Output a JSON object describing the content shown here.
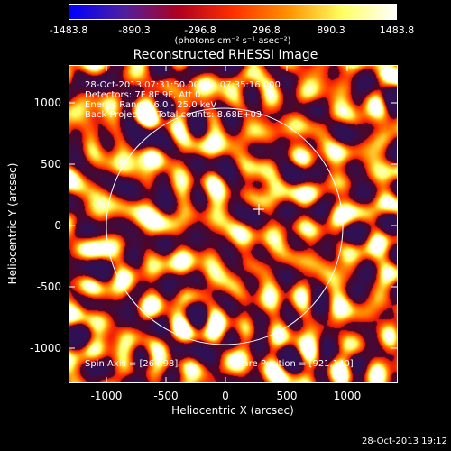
{
  "colorbar": {
    "ticks": [
      "-1483.8",
      "-890.3",
      "-296.8",
      "296.8",
      "890.3",
      "1483.8"
    ],
    "unit": "(photons cm⁻² s⁻¹ asec⁻²)"
  },
  "title": "Reconstructed RHESSI Image",
  "info": {
    "line1": "28-Oct-2013 07:31:50.000 to 07:35:16.000",
    "line2": "Detectors: 7F 8F 9F, Att 0",
    "line3": "Energy Range: 6.0 - 25.0 keV",
    "line4": "Back Projection    Total counts: 8.68E+03",
    "spin_axis": "Spin Axis = [264,98]",
    "flare_position": "Flare Position = [921,140]"
  },
  "axes": {
    "xlabel": "Heliocentric X (arcsec)",
    "ylabel": "Heliocentric Y (arcsec)",
    "xticks": [
      "-1000",
      "-500",
      "0",
      "500",
      "1000"
    ],
    "yticks": [
      "1000",
      "500",
      "0",
      "-500",
      "-1000"
    ]
  },
  "timestamp": "28-Oct-2013 19:12",
  "colors": {
    "background": "#000000",
    "colormap": [
      "#0000ff",
      "#5020a0",
      "#b00020",
      "#ff3000",
      "#ff9000",
      "#ffff60",
      "#ffffff"
    ]
  }
}
